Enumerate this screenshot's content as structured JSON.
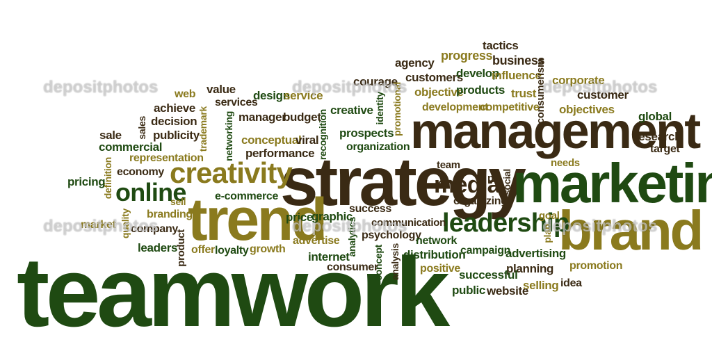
{
  "palette": {
    "green": "#1f4a12",
    "brown": "#3a2a14",
    "olive": "#8a7a1e",
    "background": "#ffffff"
  },
  "watermark": "depositphotos",
  "words": {
    "teamwork": "teamwork",
    "strategy": "strategy",
    "management": "management",
    "marketing": "marketing",
    "trend": "trend",
    "brand": "brand",
    "creativity": "creativity",
    "leadership": "leadership",
    "online": "online",
    "media": "media",
    "tactics": "tactics",
    "progress": "progress",
    "business": "business",
    "agency": "agency",
    "customers": "customers",
    "develop": "develop",
    "influence": "influence",
    "consumerism": "consumerism",
    "corporate": "corporate",
    "customer": "customer",
    "courage": "courage",
    "objective": "objective",
    "products": "products",
    "trust": "trust",
    "development": "development",
    "competitive": "competitive",
    "objectives": "objectives",
    "global": "global",
    "research": "research",
    "target": "target",
    "web": "web",
    "value": "value",
    "design": "design",
    "service": "service",
    "services": "services",
    "achieve": "achieve",
    "decision": "decision",
    "trademark": "trademark",
    "manager": "manager",
    "budget": "budget",
    "creative": "creative",
    "identity": "identity",
    "promotional": "promotional",
    "sale": "sale",
    "sales": "sales",
    "publicity": "publicity",
    "networking": "networking",
    "commercial": "commercial",
    "conceptual": "conceptual",
    "viral": "viral",
    "recognition": "recognition",
    "prospects": "prospects",
    "organization": "organization",
    "performance": "performance",
    "representation": "representation",
    "team": "team",
    "needs": "needs",
    "pricing": "pricing",
    "definition": "definition",
    "economy": "economy",
    "ecommerce": "e-commerce",
    "pr": "pr",
    "social": "social",
    "sell": "sell",
    "organizing": "organizing",
    "market": "market",
    "quality": "quality",
    "branding": "branding",
    "price": "price",
    "graphic": "graphic",
    "success": "success",
    "goal": "goal",
    "company": "company",
    "communication": "communication",
    "analytics": "analytics",
    "plan": "plan",
    "psychology": "psychology",
    "advertise": "advertise",
    "network": "network",
    "leaders": "leaders",
    "product": "product",
    "offer": "offer",
    "loyalty": "loyalty",
    "growth": "growth",
    "campaign": "campaign",
    "advertising": "advertising",
    "distribution": "distribution",
    "internet": "internet",
    "concept": "concept",
    "analysis": "analysis",
    "promotion": "promotion",
    "consumer": "consumer",
    "positive": "positive",
    "planning": "planning",
    "successful": "successful",
    "public": "public",
    "website": "website",
    "selling": "selling",
    "idea": "idea"
  }
}
